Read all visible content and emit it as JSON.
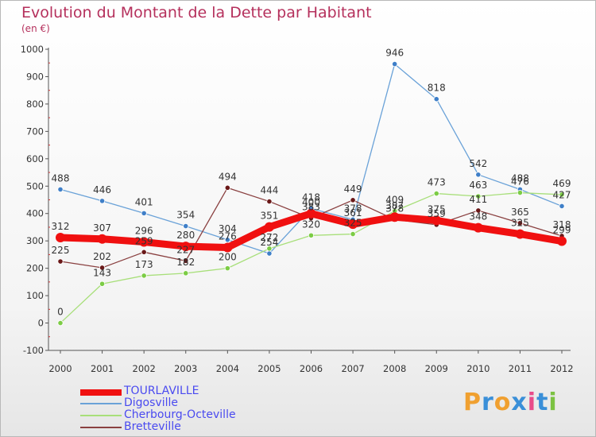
{
  "header": {
    "title": "Evolution du Montant de la Dette par Habitant",
    "subtitle": "(en €)"
  },
  "logo": {
    "letters": [
      "P",
      "r",
      "o",
      "x",
      "i",
      "t",
      "i"
    ],
    "colors": [
      "#f0a030",
      "#3a8fd8",
      "#f0a030",
      "#3a8fd8",
      "#e84b8a",
      "#3a8fd8",
      "#7cc242"
    ]
  },
  "chart_data": {
    "type": "line",
    "title": "Evolution du Montant de la Dette par Habitant",
    "ylabel": "(en €)",
    "xlabel": "",
    "x": [
      "2000",
      "2001",
      "2002",
      "2003",
      "2004",
      "2005",
      "2006",
      "2007",
      "2008",
      "2009",
      "2010",
      "2011",
      "2012"
    ],
    "ylim": [
      -100,
      1000
    ],
    "yticks": [
      -100,
      0,
      100,
      200,
      300,
      400,
      500,
      600,
      700,
      800,
      900,
      1000
    ],
    "grid": false,
    "legend_position": "bottom-left",
    "series": [
      {
        "name": "Digosville",
        "color": "#6aa2d8",
        "marker": "#3f7fc8",
        "width": 1.3,
        "values": [
          488,
          446,
          401,
          354,
          304,
          254,
          418,
          378,
          946,
          818,
          542,
          488,
          427
        ]
      },
      {
        "name": "Cherbourg-Octeville",
        "color": "#a8df7a",
        "marker": "#7ccc45",
        "width": 1.3,
        "values": [
          0,
          143,
          173,
          182,
          200,
          272,
          320,
          325,
          409,
          473,
          463,
          476,
          469
        ]
      },
      {
        "name": "Bretteville",
        "color": "#8a4040",
        "marker": "#6a1818",
        "width": 1.3,
        "values": [
          225,
          202,
          259,
          227,
          494,
          444,
          383,
          449,
          378,
          359,
          411,
          365,
          318
        ]
      },
      {
        "name": "TOURLAVILLE",
        "color": "#f01010",
        "marker": "#f01010",
        "width": 9,
        "values": [
          312,
          307,
          296,
          280,
          276,
          351,
          400,
          361,
          387,
          375,
          348,
          325,
          299
        ]
      }
    ],
    "data_labels": [
      {
        "series": 0,
        "points": [
          "488",
          "446",
          "401",
          "354",
          "304",
          "254",
          "418",
          "378",
          "946",
          "818",
          "542",
          "488",
          "427"
        ]
      },
      {
        "series": 1,
        "points": [
          "0",
          "143",
          "173",
          "182",
          "200",
          "272",
          "320",
          "325",
          "409",
          "473",
          "463",
          "476",
          "469"
        ]
      },
      {
        "series": 2,
        "points": [
          "225",
          "202",
          "259",
          "227",
          "494",
          "444",
          "383",
          "449",
          "378",
          "359",
          "411",
          "365",
          "318"
        ]
      },
      {
        "series": 3,
        "points": [
          "312",
          "307",
          "296",
          "280",
          "276",
          "351",
          "400",
          "361",
          "387",
          "375",
          "348",
          "325",
          "299"
        ]
      }
    ]
  }
}
